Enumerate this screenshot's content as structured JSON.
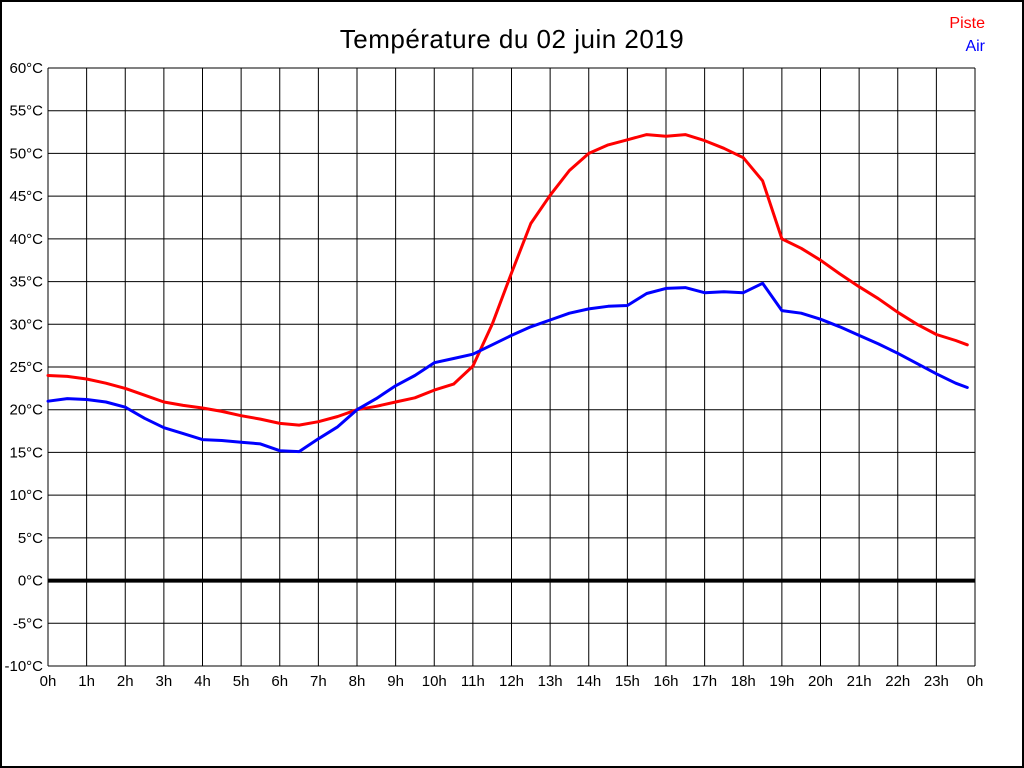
{
  "page": {
    "background_color": "#ffffff",
    "border_color": "#000000"
  },
  "chart_data": {
    "type": "line",
    "title": "Température du 02 juin 2019",
    "xlabel": "",
    "ylabel": "",
    "x_unit": "hour",
    "y_unit": "°C",
    "x_range_hours": [
      0,
      24
    ],
    "ylim": [
      -10,
      60
    ],
    "y_step": 5,
    "grid": true,
    "zero_line_celsius": 0,
    "x_tick_labels": [
      "0h",
      "1h",
      "2h",
      "3h",
      "4h",
      "5h",
      "6h",
      "7h",
      "8h",
      "9h",
      "10h",
      "11h",
      "12h",
      "13h",
      "14h",
      "15h",
      "16h",
      "17h",
      "18h",
      "19h",
      "20h",
      "21h",
      "22h",
      "23h",
      "0h"
    ],
    "y_tick_labels": [
      "60°C",
      "55°C",
      "50°C",
      "45°C",
      "40°C",
      "35°C",
      "30°C",
      "25°C",
      "20°C",
      "15°C",
      "10°C",
      "5°C",
      "0°C",
      "-5°C",
      "-10°C"
    ],
    "legend_position": "top-right",
    "legend": [
      {
        "label": "Piste",
        "color": "#ff0000"
      },
      {
        "label": "Air",
        "color": "#0000ff"
      }
    ],
    "hours": [
      0,
      0.5,
      1,
      1.5,
      2,
      2.5,
      3,
      3.5,
      4,
      4.5,
      5,
      5.5,
      6,
      6.5,
      7,
      7.5,
      8,
      8.5,
      9,
      9.5,
      10,
      10.5,
      11,
      11.5,
      12,
      12.5,
      13,
      13.5,
      14,
      14.5,
      15,
      15.5,
      16,
      16.5,
      17,
      17.5,
      18,
      18.5,
      19,
      19.5,
      20,
      20.5,
      21,
      21.5,
      22,
      22.5,
      23,
      23.5,
      23.8
    ],
    "series": [
      {
        "name": "Piste",
        "color": "#ff0000",
        "values": [
          24.0,
          23.9,
          23.6,
          23.1,
          22.5,
          21.7,
          20.9,
          20.5,
          20.2,
          19.8,
          19.3,
          18.9,
          18.4,
          18.2,
          18.6,
          19.2,
          20.0,
          20.4,
          20.9,
          21.4,
          22.3,
          23.0,
          25.1,
          30.0,
          36.0,
          41.8,
          45.1,
          48.0,
          50.0,
          51.0,
          51.6,
          52.2,
          52.0,
          52.2,
          51.5,
          50.6,
          49.5,
          46.8,
          40.0,
          38.9,
          37.5,
          35.9,
          34.4,
          33.0,
          31.4,
          30.0,
          28.8,
          28.1,
          27.6
        ]
      },
      {
        "name": "Air",
        "color": "#0000ff",
        "values": [
          21.0,
          21.3,
          21.2,
          20.9,
          20.3,
          19.0,
          17.9,
          17.2,
          16.5,
          16.4,
          16.2,
          16.0,
          15.2,
          15.1,
          16.6,
          18.0,
          20.0,
          21.3,
          22.8,
          24.0,
          25.5,
          26.0,
          26.5,
          27.6,
          28.7,
          29.7,
          30.5,
          31.3,
          31.8,
          32.1,
          32.2,
          33.6,
          34.2,
          34.3,
          33.7,
          33.8,
          33.7,
          34.8,
          31.6,
          31.3,
          30.6,
          29.7,
          28.7,
          27.7,
          26.6,
          25.4,
          24.2,
          23.1,
          22.6
        ]
      }
    ]
  }
}
